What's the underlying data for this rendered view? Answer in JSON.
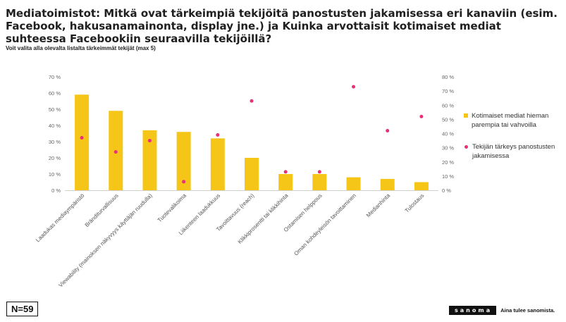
{
  "header": {
    "title": "Mediatoimistot: Mitkä ovat tärkeimpiä tekijöitä panostusten jakamisessa eri kanaviin (esim. Facebook, hakusanamainonta, display jne.) ja Kuinka arvottaisit kotimaiset mediat suhteessa Facebookiin seuraavilla tekijöillä?",
    "subtitle": "Voit valita alla olevalta listalta tärkeimmät tekijät (max 5)"
  },
  "footer": {
    "sample": "N=59",
    "brand": "sanoma",
    "tagline": "Aina tulee sanomista."
  },
  "colors": {
    "bar": "#F5C518",
    "dot": "#E8307A"
  },
  "chart_data": {
    "type": "bar",
    "categories": [
      "Laadukas mediaympäristö",
      "Bränditurvallisuus",
      "Viewability (mainoksen näkyvyys käyttäjän ruudulla)",
      "Tuotevalikoima",
      "Liikenteen laadukkuus",
      "Tavoittavuus (reach)",
      "Klikkiprosentti tai klikkihinta",
      "Ostamisen helppous",
      "Oman kohdeyleisön tavoittaminen",
      "Medianhinta",
      "Tulostaus"
    ],
    "series": [
      {
        "name": "Kotimaiset mediat hieman parempia tai vahvoilla",
        "type": "bar",
        "axis": "left",
        "values": [
          59,
          49,
          37,
          36,
          32,
          20,
          10,
          10,
          8,
          7,
          5
        ]
      },
      {
        "name": "Tekijän tärkeys panostusten jakamisessa",
        "type": "scatter",
        "axis": "right",
        "values": [
          37,
          27,
          35,
          6,
          39,
          63,
          13,
          13,
          73,
          42,
          52
        ]
      }
    ],
    "ylim_left": [
      0,
      70
    ],
    "ylim_right": [
      0,
      80
    ],
    "yticks_left": [
      "0 %",
      "10 %",
      "20 %",
      "30 %",
      "40 %",
      "50 %",
      "60 %",
      "70 %"
    ],
    "yticks_right": [
      "0 %",
      "10 %",
      "20 %",
      "30 %",
      "40 %",
      "50 %",
      "60 %",
      "70 %",
      "80 %"
    ],
    "legend_position": "right",
    "grid": false
  }
}
